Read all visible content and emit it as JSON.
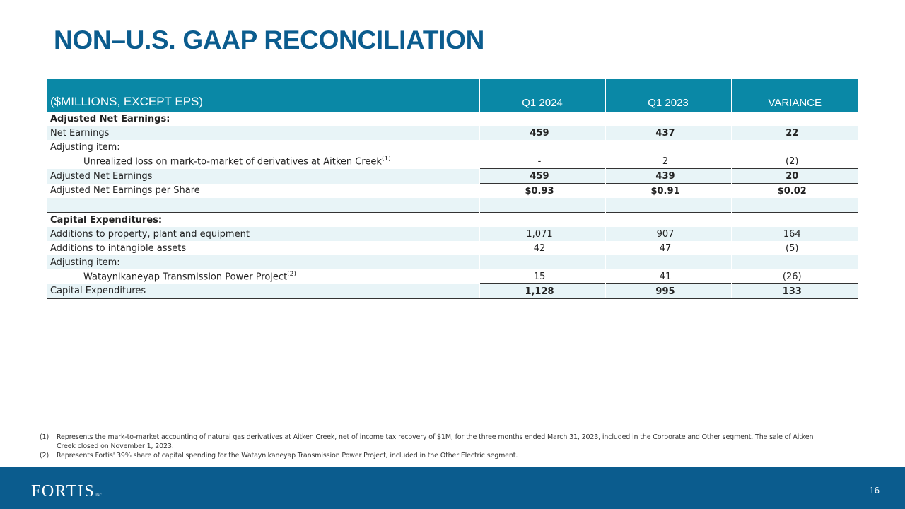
{
  "title": "NON–U.S. GAAP RECONCILIATION",
  "table": {
    "headers": [
      "($MILLIONS, EXCEPT EPS)",
      "Q1 2024",
      "Q1 2023",
      "VARIANCE"
    ],
    "rows": [
      {
        "label": "Adjusted Net Earnings:",
        "values": [
          "",
          "",
          ""
        ]
      },
      {
        "label": "Net Earnings",
        "values": [
          "459",
          "437",
          "22"
        ]
      },
      {
        "label": "Adjusting item:",
        "values": [
          "",
          "",
          ""
        ]
      },
      {
        "label": "Unrealized loss on mark-to-market  of derivatives at Aitken Creek",
        "sup": "(1)",
        "values": [
          "-",
          "2",
          "(2)"
        ]
      },
      {
        "label": "Adjusted Net Earnings",
        "values": [
          "459",
          "439",
          "20"
        ]
      },
      {
        "label": "Adjusted Net Earnings per Share",
        "values": [
          "$0.93",
          "$0.91",
          "$0.02"
        ]
      },
      {
        "label": "",
        "values": [
          "",
          "",
          ""
        ]
      },
      {
        "label": "Capital Expenditures:",
        "values": [
          "",
          "",
          ""
        ]
      },
      {
        "label": "Additions to property, plant and equipment",
        "values": [
          "1,071",
          "907",
          "164"
        ]
      },
      {
        "label": "Additions to intangible assets",
        "values": [
          "42",
          "47",
          "(5)"
        ]
      },
      {
        "label": "Adjusting item:",
        "values": [
          "",
          "",
          ""
        ]
      },
      {
        "label": "Wataynikaneyap Transmission Power Project",
        "sup": "(2)",
        "values": [
          "15",
          "41",
          "(26)"
        ]
      },
      {
        "label": "Capital Expenditures",
        "values": [
          "1,128",
          "995",
          "133"
        ]
      }
    ]
  },
  "footnotes": [
    {
      "num": "(1)",
      "text": "Represents the mark-to-market accounting of natural gas derivatives at Aitken Creek, net of income tax recovery of $1M, for the three months ended March 31, 2023, included in the Corporate and Other segment. The sale of Aitken Creek closed on November 1, 2023."
    },
    {
      "num": "(2)",
      "text": "Represents Fortis' 39% share of capital spending for the Wataynikaneyap Transmission Power Project, included in the Other Electric segment."
    }
  ],
  "footer": {
    "logo_text": "FORTIS",
    "logo_suffix": "INC.",
    "page_number": "16"
  },
  "colors": {
    "title": "#0b5c8e",
    "table_header": "#0a88a6",
    "row_shade": "#e8f4f7",
    "footer": "#0b5c8e"
  }
}
